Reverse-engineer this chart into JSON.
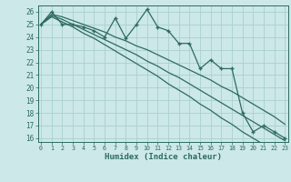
{
  "xlabel": "Humidex (Indice chaleur)",
  "bg_color": "#cce8e8",
  "grid_color": "#aacfcf",
  "line_color": "#2d6b5e",
  "x_data": [
    0,
    1,
    2,
    3,
    4,
    5,
    6,
    7,
    8,
    9,
    10,
    11,
    12,
    13,
    14,
    15,
    16,
    17,
    18,
    19,
    20,
    21,
    22,
    23
  ],
  "y_main": [
    25,
    26,
    25,
    25,
    24.8,
    24.5,
    24,
    25.5,
    23.9,
    25,
    26.2,
    24.8,
    24.5,
    23.5,
    23.5,
    21.5,
    22.2,
    21.5,
    21.5,
    18,
    16.5,
    17,
    16.5,
    16
  ],
  "y_line1": [
    25,
    25.8,
    25.6,
    25.3,
    25.0,
    24.7,
    24.4,
    24.0,
    23.7,
    23.3,
    23.0,
    22.6,
    22.2,
    21.8,
    21.4,
    21.0,
    20.6,
    20.1,
    19.7,
    19.2,
    18.7,
    18.2,
    17.7,
    17.1
  ],
  "y_line2": [
    25,
    25.7,
    25.4,
    25.0,
    24.6,
    24.2,
    23.8,
    23.4,
    23.0,
    22.6,
    22.1,
    21.7,
    21.2,
    20.8,
    20.3,
    19.8,
    19.3,
    18.8,
    18.3,
    17.8,
    17.3,
    16.8,
    16.3,
    15.8
  ],
  "y_line3": [
    25,
    25.6,
    25.2,
    24.8,
    24.3,
    23.9,
    23.4,
    22.9,
    22.4,
    21.9,
    21.4,
    20.9,
    20.3,
    19.8,
    19.3,
    18.7,
    18.2,
    17.6,
    17.1,
    16.5,
    16.0,
    15.5,
    15.0,
    14.5
  ],
  "ylim_min": 16,
  "ylim_max": 26.5,
  "xlim_min": -0.3,
  "xlim_max": 23.3,
  "yticks": [
    16,
    17,
    18,
    19,
    20,
    21,
    22,
    23,
    24,
    25,
    26
  ],
  "xticks": [
    0,
    1,
    2,
    3,
    4,
    5,
    6,
    7,
    8,
    9,
    10,
    11,
    12,
    13,
    14,
    15,
    16,
    17,
    18,
    19,
    20,
    21,
    22,
    23
  ]
}
